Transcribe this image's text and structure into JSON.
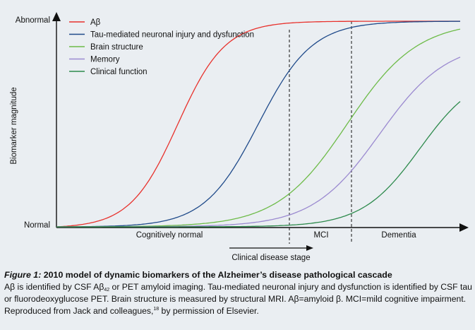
{
  "chart_data": {
    "type": "line",
    "ylabel": "Biomarker magnitude",
    "y_tick_labels": [
      "Normal",
      "Abnormal"
    ],
    "x_stage_labels": [
      "Cognitively normal",
      "MCI",
      "Dementia"
    ],
    "x_arrow_label": "Clinical disease stage",
    "ylim": [
      0,
      1
    ],
    "xlim": [
      0,
      1
    ],
    "stage_boundaries": [
      0.584,
      0.75
    ],
    "grid": false,
    "legend_position": "top-left",
    "series": [
      {
        "name": "Aβ",
        "color": "#e8312c",
        "midpoint": 0.3,
        "steepness": 17,
        "end": 1.0
      },
      {
        "name": "Tau-mediated neuronal injury and dysfunction",
        "color": "#1f4a8a",
        "midpoint": 0.5,
        "steepness": 15,
        "end": 1.0
      },
      {
        "name": "Brain structure",
        "color": "#6dbb48",
        "midpoint": 0.72,
        "steepness": 11.5,
        "end": 1.0
      },
      {
        "name": "Memory",
        "color": "#9b8ad0",
        "midpoint": 0.8,
        "steepness": 12,
        "end": 0.9
      },
      {
        "name": "Clinical function",
        "color": "#2d8a4c",
        "midpoint": 0.9,
        "steepness": 14,
        "end": 0.76
      }
    ]
  },
  "caption": {
    "title_label": "Figure 1:",
    "title_text": " 2010 model of dynamic biomarkers of the Alzheimer’s disease pathological cascade",
    "body_1": "Aβ is identified by CSF Aβ",
    "body_sub": "42",
    "body_2": " or PET amyloid imaging. Tau-mediated neuronal injury and dysfunction is identified by CSF tau or fluorodeoxyglucose PET. Brain structure is measured by structural MRI. Aβ=amyloid β. MCI=mild cognitive impairment. Reproduced from Jack and colleagues,",
    "body_ref": "18",
    "body_3": " by permission of Elsevier."
  }
}
